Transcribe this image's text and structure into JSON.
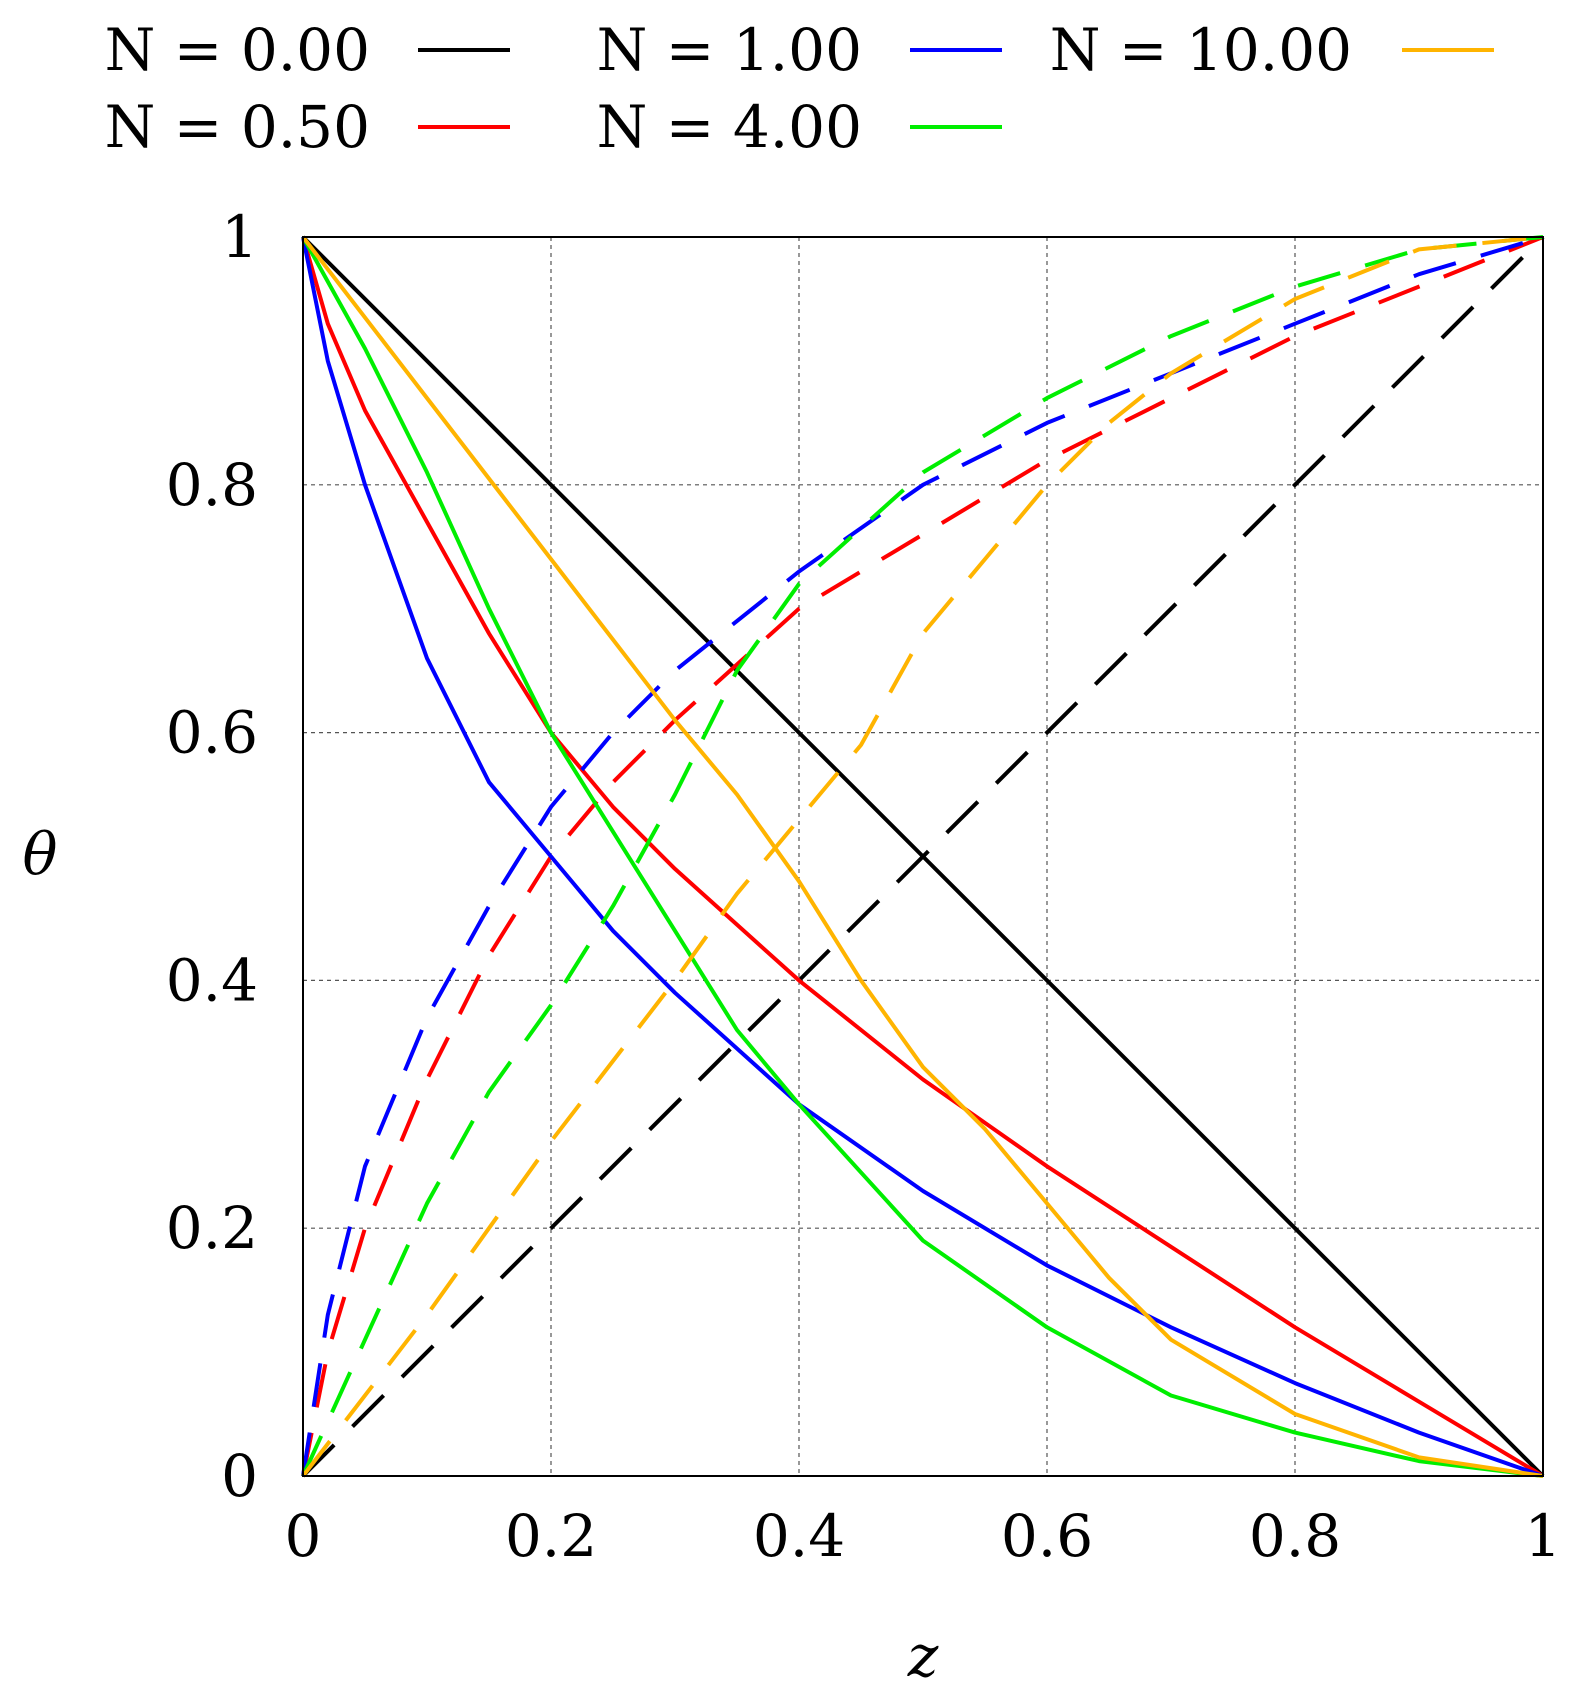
{
  "chart_data": {
    "type": "line",
    "title": "",
    "xlabel": "z",
    "ylabel": "θ",
    "xlim": [
      0,
      1
    ],
    "ylim": [
      0,
      1
    ],
    "x_ticks": [
      "0",
      "0.2",
      "0.4",
      "0.6",
      "0.8",
      "1"
    ],
    "y_ticks": [
      "0",
      "0.2",
      "0.4",
      "0.6",
      "0.8",
      "1"
    ],
    "grid": true,
    "legend_position": "top",
    "series": [
      {
        "name": "N = 0.00",
        "color": "#000000",
        "x": [
          0,
          0.25,
          0.5,
          0.75,
          1
        ],
        "y": [
          1,
          0.75,
          0.5,
          0.25,
          0
        ],
        "dashed_x": [
          0,
          0.25,
          0.5,
          0.75,
          1
        ],
        "dashed_y": [
          0,
          0.25,
          0.5,
          0.75,
          1
        ]
      },
      {
        "name": "N = 0.50",
        "color": "#ff0000",
        "x": [
          0,
          0.02,
          0.05,
          0.1,
          0.15,
          0.2,
          0.25,
          0.3,
          0.4,
          0.5,
          0.6,
          0.7,
          0.8,
          0.9,
          1
        ],
        "y": [
          1,
          0.93,
          0.86,
          0.77,
          0.68,
          0.6,
          0.54,
          0.49,
          0.4,
          0.32,
          0.25,
          0.185,
          0.12,
          0.06,
          0
        ],
        "dashed_x": [
          0,
          0.02,
          0.05,
          0.1,
          0.15,
          0.2,
          0.25,
          0.3,
          0.4,
          0.5,
          0.6,
          0.7,
          0.8,
          0.9,
          1
        ],
        "dashed_y": [
          0,
          0.1,
          0.2,
          0.32,
          0.42,
          0.5,
          0.56,
          0.61,
          0.7,
          0.76,
          0.82,
          0.87,
          0.92,
          0.96,
          1
        ]
      },
      {
        "name": "N = 1.00",
        "color": "#0000ff",
        "x": [
          0,
          0.02,
          0.05,
          0.1,
          0.15,
          0.2,
          0.25,
          0.3,
          0.4,
          0.5,
          0.6,
          0.7,
          0.8,
          0.9,
          1
        ],
        "y": [
          1,
          0.9,
          0.8,
          0.66,
          0.56,
          0.5,
          0.44,
          0.39,
          0.3,
          0.23,
          0.17,
          0.12,
          0.075,
          0.035,
          0
        ],
        "dashed_x": [
          0,
          0.02,
          0.05,
          0.1,
          0.15,
          0.2,
          0.25,
          0.3,
          0.4,
          0.5,
          0.6,
          0.7,
          0.8,
          0.9,
          1
        ],
        "dashed_y": [
          0,
          0.13,
          0.25,
          0.37,
          0.46,
          0.54,
          0.6,
          0.65,
          0.73,
          0.8,
          0.85,
          0.89,
          0.93,
          0.97,
          1
        ]
      },
      {
        "name": "N = 4.00",
        "color": "#00ee00",
        "x": [
          0,
          0.05,
          0.1,
          0.15,
          0.2,
          0.25,
          0.3,
          0.35,
          0.4,
          0.5,
          0.6,
          0.7,
          0.8,
          0.9,
          1
        ],
        "y": [
          1,
          0.91,
          0.81,
          0.7,
          0.6,
          0.52,
          0.44,
          0.36,
          0.3,
          0.19,
          0.12,
          0.065,
          0.035,
          0.012,
          0
        ],
        "dashed_x": [
          0,
          0.05,
          0.1,
          0.15,
          0.2,
          0.25,
          0.3,
          0.35,
          0.4,
          0.5,
          0.6,
          0.7,
          0.8,
          0.9,
          1
        ],
        "dashed_y": [
          0,
          0.11,
          0.22,
          0.31,
          0.38,
          0.46,
          0.55,
          0.65,
          0.72,
          0.81,
          0.87,
          0.92,
          0.96,
          0.99,
          1
        ]
      },
      {
        "name": "N = 10.00",
        "color": "#ffb400",
        "x": [
          0,
          0.1,
          0.2,
          0.3,
          0.35,
          0.4,
          0.45,
          0.5,
          0.55,
          0.6,
          0.65,
          0.7,
          0.8,
          0.9,
          1
        ],
        "y": [
          1,
          0.87,
          0.74,
          0.61,
          0.55,
          0.48,
          0.4,
          0.33,
          0.28,
          0.22,
          0.16,
          0.11,
          0.05,
          0.015,
          0
        ],
        "dashed_x": [
          0,
          0.1,
          0.2,
          0.3,
          0.35,
          0.4,
          0.45,
          0.5,
          0.55,
          0.6,
          0.65,
          0.7,
          0.8,
          0.9,
          1
        ],
        "dashed_y": [
          0,
          0.13,
          0.27,
          0.4,
          0.47,
          0.53,
          0.59,
          0.68,
          0.74,
          0.8,
          0.85,
          0.89,
          0.95,
          0.99,
          1
        ]
      }
    ]
  }
}
